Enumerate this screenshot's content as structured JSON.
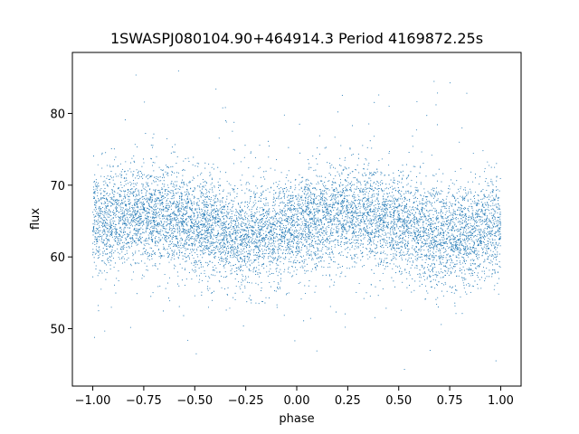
{
  "chart_data": {
    "type": "scatter",
    "title": "1SWASPJ080104.90+464914.3 Period 4169872.25s",
    "xlabel": "phase",
    "ylabel": "flux",
    "xlim": [
      -1.1,
      1.1
    ],
    "ylim": [
      42,
      88.5
    ],
    "x_ticks": [
      -1.0,
      -0.75,
      -0.5,
      -0.25,
      0.0,
      0.25,
      0.5,
      0.75,
      1.0
    ],
    "x_tick_labels": [
      "−1.00",
      "−0.75",
      "−0.50",
      "−0.25",
      "0.00",
      "0.25",
      "0.50",
      "0.75",
      "1.00"
    ],
    "y_ticks": [
      50,
      60,
      70,
      80
    ],
    "y_tick_labels": [
      "50",
      "60",
      "70",
      "80"
    ],
    "grid": false,
    "legend": "none",
    "series": [
      {
        "color": "#1f77b4",
        "x_range": [
          -1.0,
          1.0
        ],
        "flux_center": 64.5,
        "flux_band": [
          56,
          73
        ],
        "flux_extremes": [
          44,
          86
        ],
        "marker": "dot"
      }
    ]
  }
}
